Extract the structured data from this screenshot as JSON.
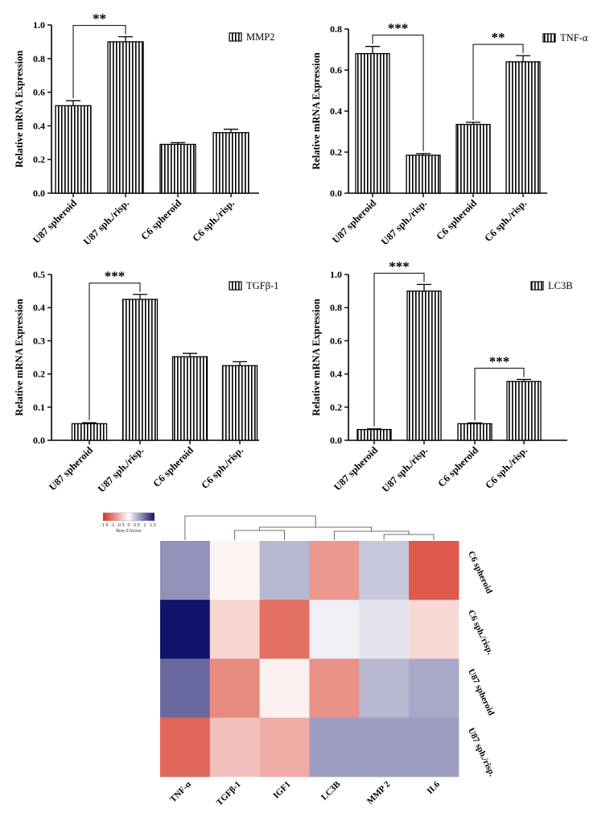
{
  "chart_data": [
    {
      "id": "mmp2",
      "type": "bar",
      "legend": "MMP2",
      "ylabel": "Relative mRNA Expression",
      "categories": [
        "U87 spheroid",
        "U87 sph./risp.",
        "C6 spheroid",
        "C6 sph./risp."
      ],
      "values": [
        0.52,
        0.9,
        0.29,
        0.36
      ],
      "errors": [
        0.03,
        0.03,
        0.01,
        0.02
      ],
      "ylim": [
        0,
        1.0
      ],
      "yticks": [
        0.0,
        0.2,
        0.4,
        0.6,
        0.8,
        1.0
      ],
      "tick_labels": [
        "0.0",
        "0.2",
        "0.4",
        "0.6",
        "0.8",
        "1.0"
      ],
      "significance": [
        {
          "from": 0,
          "to": 1,
          "label": "**"
        }
      ]
    },
    {
      "id": "tnfa",
      "type": "bar",
      "legend": "TNF-α",
      "ylabel": "Relative mRNA Expression",
      "categories": [
        "U87 spheroid",
        "U87 sph./risp.",
        "C6 spheroid",
        "C6 sph./risp."
      ],
      "values": [
        0.68,
        0.185,
        0.335,
        0.64
      ],
      "errors": [
        0.035,
        0.008,
        0.01,
        0.03
      ],
      "ylim": [
        0,
        0.8
      ],
      "yticks": [
        0.0,
        0.2,
        0.4,
        0.6,
        0.8
      ],
      "tick_labels": [
        "0.0",
        "0.2",
        "0.4",
        "0.6",
        "0.8"
      ],
      "significance": [
        {
          "from": 0,
          "to": 1,
          "label": "***"
        },
        {
          "from": 2,
          "to": 3,
          "label": "**"
        }
      ]
    },
    {
      "id": "tgfb1",
      "type": "bar",
      "legend": "TGFβ-1",
      "ylabel": "Relative mRNA Expression",
      "categories": [
        "U87 spheroid",
        "U87 sph./risp.",
        "C6 spheroid",
        "C6 sph./risp."
      ],
      "values": [
        0.05,
        0.425,
        0.252,
        0.225
      ],
      "errors": [
        0.003,
        0.015,
        0.01,
        0.012
      ],
      "ylim": [
        0,
        0.5
      ],
      "yticks": [
        0.0,
        0.1,
        0.2,
        0.3,
        0.4,
        0.5
      ],
      "tick_labels": [
        "0.0",
        "0.1",
        "0.2",
        "0.3",
        "0.4",
        "0.5"
      ],
      "significance": [
        {
          "from": 0,
          "to": 1,
          "label": "***"
        }
      ]
    },
    {
      "id": "lc3b",
      "type": "bar",
      "legend": "LC3B",
      "ylabel": "Relative mRNA Expression",
      "categories": [
        "U87 spheroid",
        "U87 sph./risp.",
        "C6 spheroid",
        "C6 sph./risp."
      ],
      "values": [
        0.065,
        0.9,
        0.1,
        0.355
      ],
      "errors": [
        0.004,
        0.04,
        0.005,
        0.012
      ],
      "ylim": [
        0,
        1.0
      ],
      "yticks": [
        0.0,
        0.2,
        0.4,
        0.6,
        0.8,
        1.0
      ],
      "tick_labels": [
        "0.0",
        "0.2",
        "0.4",
        "0.6",
        "0.8",
        "1.0"
      ],
      "significance": [
        {
          "from": 0,
          "to": 1,
          "label": "***"
        },
        {
          "from": 2,
          "to": 3,
          "label": "***"
        }
      ]
    },
    {
      "id": "heatmap",
      "type": "heatmap",
      "columns": [
        "TNF-α",
        "TGFβ-1",
        "IGF1",
        "LC3B",
        "MMP 2",
        "IL6"
      ],
      "rows": [
        "C6 spheroid",
        "C6 sph./risp.",
        "U87 spheroid",
        "U87 sph./risp."
      ],
      "values": [
        [
          0.7,
          -0.08,
          0.45,
          -0.75,
          0.35,
          -1.2
        ],
        [
          1.5,
          -0.3,
          -1.05,
          0.1,
          0.18,
          -0.28
        ],
        [
          0.95,
          -0.85,
          -0.1,
          -0.8,
          0.45,
          0.55
        ],
        [
          -1.1,
          -0.45,
          -0.6,
          0.62,
          0.62,
          0.62
        ]
      ],
      "color_key": {
        "title": "Row Z-Score",
        "ticks": [
          "-1.5",
          "-1",
          "-0.5",
          "0",
          "0.5",
          "1",
          "1.5"
        ],
        "low_color": "#d7301f",
        "mid_color": "#ffffff",
        "high_color": "#13136b"
      }
    }
  ]
}
